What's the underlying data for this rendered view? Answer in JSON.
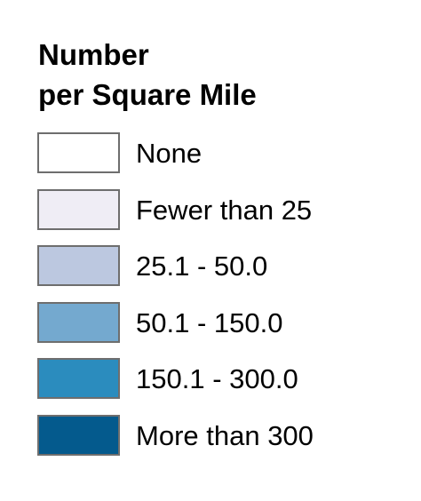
{
  "legend": {
    "title_line1": "Number",
    "title_line2": "per Square Mile",
    "items": [
      {
        "label": "None",
        "color": "#ffffff"
      },
      {
        "label": "Fewer than 25",
        "color": "#efedf5"
      },
      {
        "label": "25.1 - 50.0",
        "color": "#bcc8e0"
      },
      {
        "label": "50.1 - 150.0",
        "color": "#74a9cf"
      },
      {
        "label": "150.1 - 300.0",
        "color": "#2b8cbe"
      },
      {
        "label": "More than 300",
        "color": "#045a8d"
      }
    ]
  }
}
